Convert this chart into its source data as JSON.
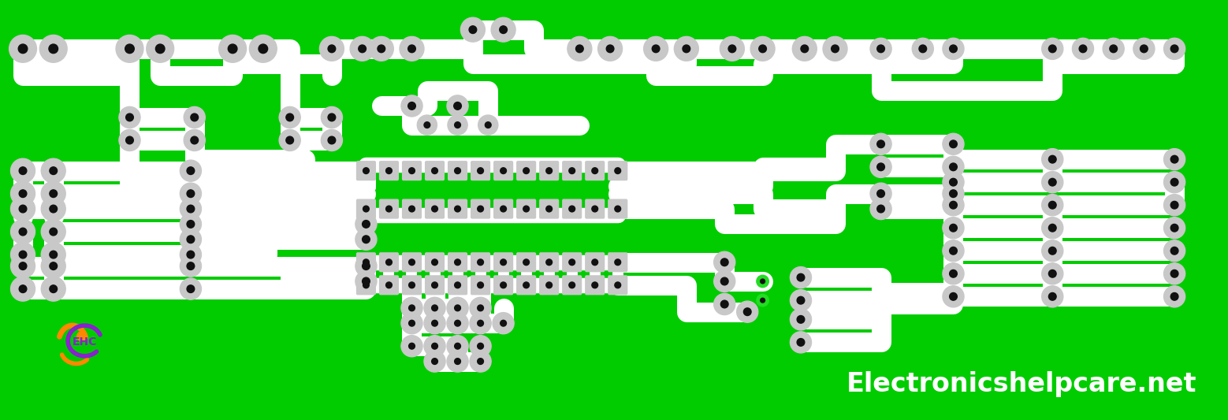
{
  "bg_color": "#00CC00",
  "trace_color": "#FFFFFF",
  "pad_outer_color": "#C8C8C8",
  "pad_inner_color": "#111111",
  "website_text": "Electronicshelpcare.net",
  "website_color": "#FFFFFF",
  "website_fontsize": 24,
  "trace_lw": 18,
  "pad_outer_r": 16,
  "pad_inner_r": 5,
  "ic_pad_outer_r": 11,
  "ic_pad_inner_r": 4,
  "small_pad_outer_r": 13,
  "small_pad_inner_r": 4
}
